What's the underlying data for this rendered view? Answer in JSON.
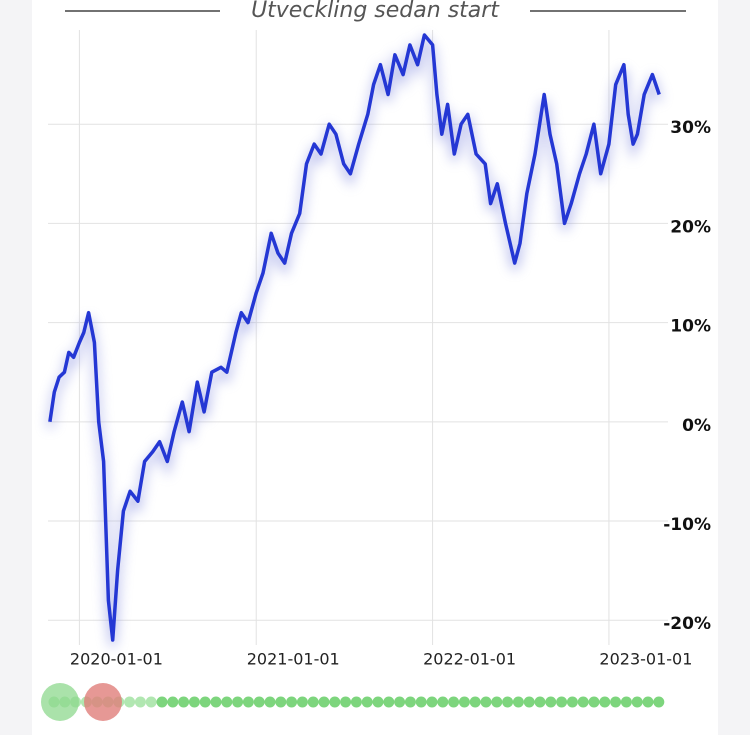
{
  "chart_data": {
    "type": "line",
    "title": "Utveckling sedan start",
    "x": [
      "2019-11-01",
      "2019-11-10",
      "2019-11-20",
      "2019-12-01",
      "2019-12-10",
      "2019-12-20",
      "2020-01-01",
      "2020-01-10",
      "2020-01-20",
      "2020-02-01",
      "2020-02-10",
      "2020-02-20",
      "2020-03-01",
      "2020-03-10",
      "2020-03-20",
      "2020-04-01",
      "2020-04-15",
      "2020-05-01",
      "2020-05-15",
      "2020-06-01",
      "2020-06-15",
      "2020-07-01",
      "2020-07-15",
      "2020-08-01",
      "2020-08-15",
      "2020-09-01",
      "2020-09-15",
      "2020-10-01",
      "2020-10-20",
      "2020-11-01",
      "2020-11-20",
      "2020-12-01",
      "2020-12-15",
      "2021-01-01",
      "2021-01-15",
      "2021-02-01",
      "2021-02-15",
      "2021-03-01",
      "2021-03-15",
      "2021-04-01",
      "2021-04-15",
      "2021-05-01",
      "2021-05-15",
      "2021-06-01",
      "2021-06-15",
      "2021-07-01",
      "2021-07-15",
      "2021-08-01",
      "2021-08-20",
      "2021-09-01",
      "2021-09-15",
      "2021-10-01",
      "2021-10-15",
      "2021-11-01",
      "2021-11-15",
      "2021-12-01",
      "2021-12-15",
      "2022-01-01",
      "2022-01-10",
      "2022-01-20",
      "2022-02-01",
      "2022-02-15",
      "2022-03-01",
      "2022-03-15",
      "2022-04-01",
      "2022-04-20",
      "2022-05-01",
      "2022-05-15",
      "2022-06-01",
      "2022-06-20",
      "2022-07-01",
      "2022-07-15",
      "2022-08-01",
      "2022-08-20",
      "2022-09-01",
      "2022-09-15",
      "2022-10-01",
      "2022-10-15",
      "2022-11-01",
      "2022-11-15",
      "2022-12-01",
      "2022-12-15",
      "2023-01-01",
      "2023-01-15",
      "2023-02-01",
      "2023-02-10",
      "2023-02-20",
      "2023-03-01",
      "2023-03-15",
      "2023-04-01",
      "2023-04-15"
    ],
    "series": [
      {
        "color": "#2437d4",
        "values": [
          0,
          3,
          4.5,
          5,
          7,
          6.5,
          8,
          9,
          11,
          8,
          0,
          -4,
          -18,
          -22,
          -15,
          -9,
          -7,
          -8,
          -4,
          -3,
          -2,
          -4,
          -1,
          2,
          -1,
          4,
          1,
          5,
          5.5,
          5,
          9,
          11,
          10,
          13,
          15,
          19,
          17,
          16,
          19,
          21,
          26,
          28,
          27,
          30,
          29,
          26,
          25,
          28,
          31,
          34,
          36,
          33,
          37,
          35,
          38,
          36,
          39,
          38,
          33,
          29,
          32,
          27,
          30,
          31,
          27,
          26,
          22,
          24,
          20,
          16,
          18,
          23,
          27,
          33,
          29,
          26,
          20,
          22,
          25,
          27,
          30,
          25,
          28,
          34,
          36,
          31,
          28,
          29,
          33,
          35,
          33
        ]
      }
    ],
    "xlim": [
      "2019-10-28",
      "2023-04-25"
    ],
    "xticks": [
      "2020-01-01",
      "2021-01-01",
      "2022-01-01",
      "2023-01-01"
    ],
    "ylim": [
      -22.5,
      39.5
    ],
    "yticks": [
      {
        "value": -20,
        "label": "-20%"
      },
      {
        "value": -10,
        "label": "-10%"
      },
      {
        "value": 0,
        "label": "0%"
      },
      {
        "value": 10,
        "label": "10%"
      },
      {
        "value": 20,
        "label": "20%"
      },
      {
        "value": 30,
        "label": "30%"
      }
    ],
    "grid": true
  }
}
